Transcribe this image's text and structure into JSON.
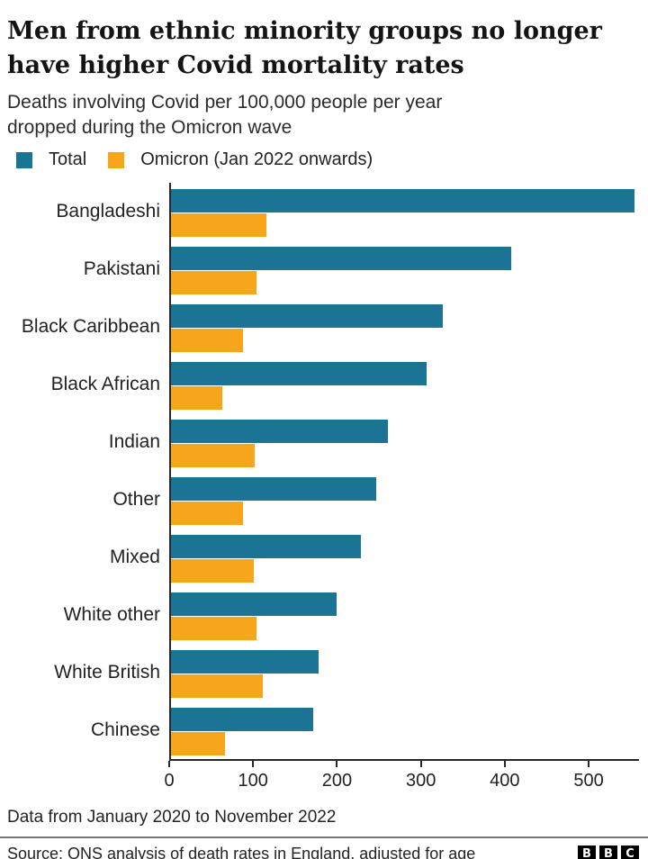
{
  "header": {
    "title_lines": [
      "Men from ethnic minority groups no longer",
      "have higher Covid mortality rates"
    ],
    "subtitle_lines": [
      "Deaths involving Covid per 100,000 people per year",
      "dropped during the Omicron wave"
    ]
  },
  "chart_data": {
    "type": "bar",
    "orientation": "horizontal",
    "title": "Men from ethnic minority groups no longer have higher Covid mortality rates",
    "subtitle": "Deaths involving Covid per 100,000 people per year dropped during the Omicron wave",
    "xlabel": "",
    "ylabel": "",
    "xlim": [
      0,
      560
    ],
    "x_ticks": [
      0,
      100,
      200,
      300,
      400,
      500
    ],
    "grid": false,
    "legend_position": "top-left",
    "categories": [
      "Bangladeshi",
      "Pakistani",
      "Black Caribbean",
      "Black African",
      "Indian",
      "Other",
      "Mixed",
      "White other",
      "White British",
      "Chinese"
    ],
    "series": [
      {
        "name": "Total",
        "color": "#1B7496",
        "values": [
          555,
          407,
          325,
          306,
          260,
          245,
          227,
          198,
          177,
          170
        ]
      },
      {
        "name": "Omicron (Jan 2022 onwards)",
        "color": "#F7A61C",
        "values": [
          114,
          102,
          86,
          61,
          100,
          86,
          99,
          102,
          110,
          65
        ]
      }
    ]
  },
  "footer": {
    "note": "Data from January 2020 to November 2022",
    "source": "Source: ONS analysis of death rates in England, adjusted for age",
    "logo_letters": [
      "B",
      "B",
      "C"
    ]
  },
  "colors": {
    "total_bar": "#1B7496",
    "omicron_bar": "#F7A61C",
    "axis": "#272727",
    "title_text": "#141414",
    "body_text": "#222222",
    "divider": "#767676"
  }
}
